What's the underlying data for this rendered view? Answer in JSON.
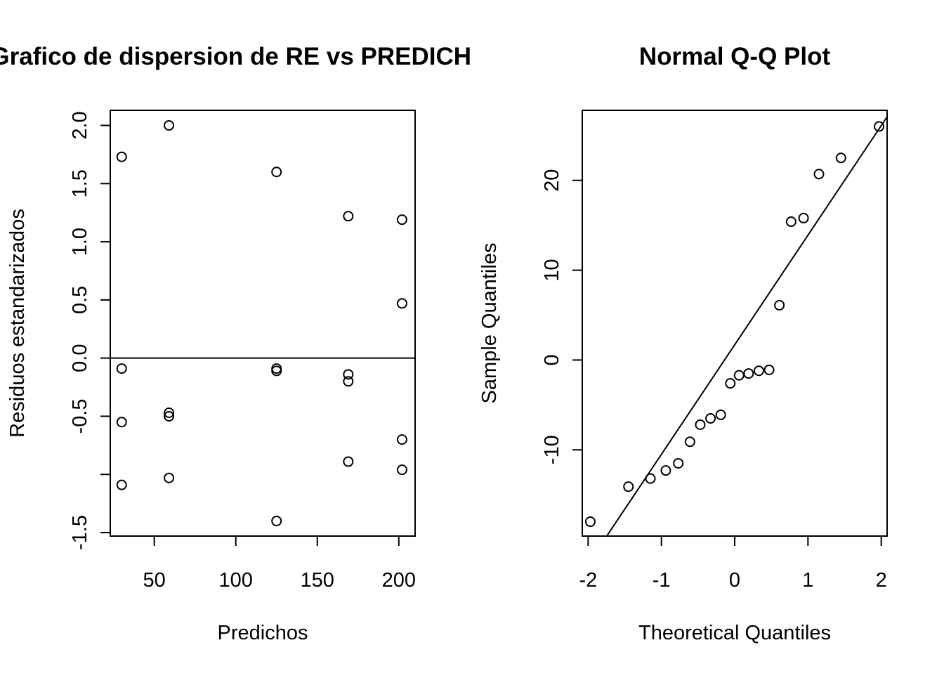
{
  "chart_data": [
    {
      "type": "scatter",
      "title": "Grafico de dispersion de RE vs PREDICHOS",
      "xlabel": "Predichos",
      "ylabel": "Residuos estandarizados",
      "xlim": [
        23,
        210
      ],
      "ylim": [
        -1.53,
        2.13
      ],
      "xticks": [
        50,
        100,
        150,
        200
      ],
      "yticks": [
        -1.5,
        -1.0,
        -0.5,
        0.0,
        0.5,
        1.0,
        1.5,
        2.0
      ],
      "ytick_labels": [
        "-1.5",
        "",
        "-0.5",
        "0.0",
        "0.5",
        "1.0",
        "1.5",
        "2.0"
      ],
      "hline": 0,
      "grid": false,
      "points": [
        {
          "x": 30,
          "y": 1.73
        },
        {
          "x": 30,
          "y": -0.09
        },
        {
          "x": 30,
          "y": -0.55
        },
        {
          "x": 30,
          "y": -1.09
        },
        {
          "x": 59,
          "y": 2.0
        },
        {
          "x": 59,
          "y": -0.47
        },
        {
          "x": 59,
          "y": -0.5
        },
        {
          "x": 59,
          "y": -1.03
        },
        {
          "x": 125,
          "y": 1.6
        },
        {
          "x": 125,
          "y": -0.09
        },
        {
          "x": 125,
          "y": -0.11
        },
        {
          "x": 125,
          "y": -1.4
        },
        {
          "x": 169,
          "y": 1.22
        },
        {
          "x": 169,
          "y": -0.14
        },
        {
          "x": 169,
          "y": -0.2
        },
        {
          "x": 169,
          "y": -0.89
        },
        {
          "x": 202,
          "y": 1.19
        },
        {
          "x": 202,
          "y": 0.47
        },
        {
          "x": 202,
          "y": -0.7
        },
        {
          "x": 202,
          "y": -0.96
        }
      ]
    },
    {
      "type": "scatter",
      "title": "Normal Q-Q Plot",
      "xlabel": "Theoretical Quantiles",
      "ylabel": "Sample Quantiles",
      "xlim": [
        -2.08,
        2.08
      ],
      "ylim": [
        -19.6,
        27.8
      ],
      "xticks": [
        -2,
        -1,
        0,
        1,
        2
      ],
      "yticks": [
        -10,
        0,
        10,
        20
      ],
      "grid": false,
      "reference_line": {
        "intercept": 1.7,
        "slope": 12.2
      },
      "points": [
        {
          "x": -1.97,
          "y": -18.0
        },
        {
          "x": -1.45,
          "y": -14.1
        },
        {
          "x": -1.15,
          "y": -13.2
        },
        {
          "x": -0.94,
          "y": -12.3
        },
        {
          "x": -0.77,
          "y": -11.5
        },
        {
          "x": -0.61,
          "y": -9.1
        },
        {
          "x": -0.47,
          "y": -7.2
        },
        {
          "x": -0.33,
          "y": -6.5
        },
        {
          "x": -0.19,
          "y": -6.1
        },
        {
          "x": -0.06,
          "y": -2.6
        },
        {
          "x": 0.06,
          "y": -1.7
        },
        {
          "x": 0.19,
          "y": -1.5
        },
        {
          "x": 0.33,
          "y": -1.2
        },
        {
          "x": 0.47,
          "y": -1.1
        },
        {
          "x": 0.61,
          "y": 6.1
        },
        {
          "x": 0.77,
          "y": 15.4
        },
        {
          "x": 0.94,
          "y": 15.8
        },
        {
          "x": 1.15,
          "y": 20.7
        },
        {
          "x": 1.45,
          "y": 22.5
        },
        {
          "x": 1.97,
          "y": 26.0
        }
      ]
    }
  ]
}
